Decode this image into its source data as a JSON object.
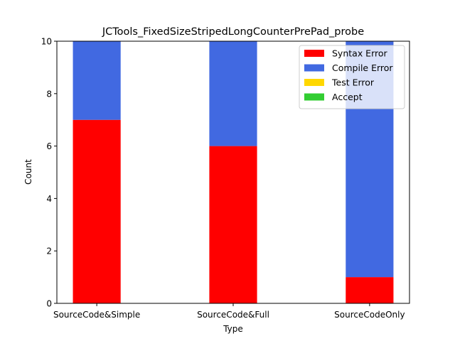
{
  "chart_data": {
    "type": "bar",
    "stacked": true,
    "title": "JCTools_FixedSizeStripedLongCounterPrePad_probe",
    "xlabel": "Type",
    "ylabel": "Count",
    "ylim": [
      0,
      10
    ],
    "yticks": [
      0,
      2,
      4,
      6,
      8,
      10
    ],
    "categories": [
      "SourceCode&Simple",
      "SourceCode&Full",
      "SourceCodeOnly"
    ],
    "series": [
      {
        "name": "Syntax Error",
        "color": "#ff0000",
        "values": [
          7,
          6,
          1
        ]
      },
      {
        "name": "Compile Error",
        "color": "#4169e1",
        "values": [
          3,
          4,
          9
        ]
      },
      {
        "name": "Test Error",
        "color": "#ffd700",
        "values": [
          0,
          0,
          0
        ]
      },
      {
        "name": "Accept",
        "color": "#32cd32",
        "values": [
          0,
          0,
          0
        ]
      }
    ],
    "legend_position": "top-right",
    "grid": false
  }
}
